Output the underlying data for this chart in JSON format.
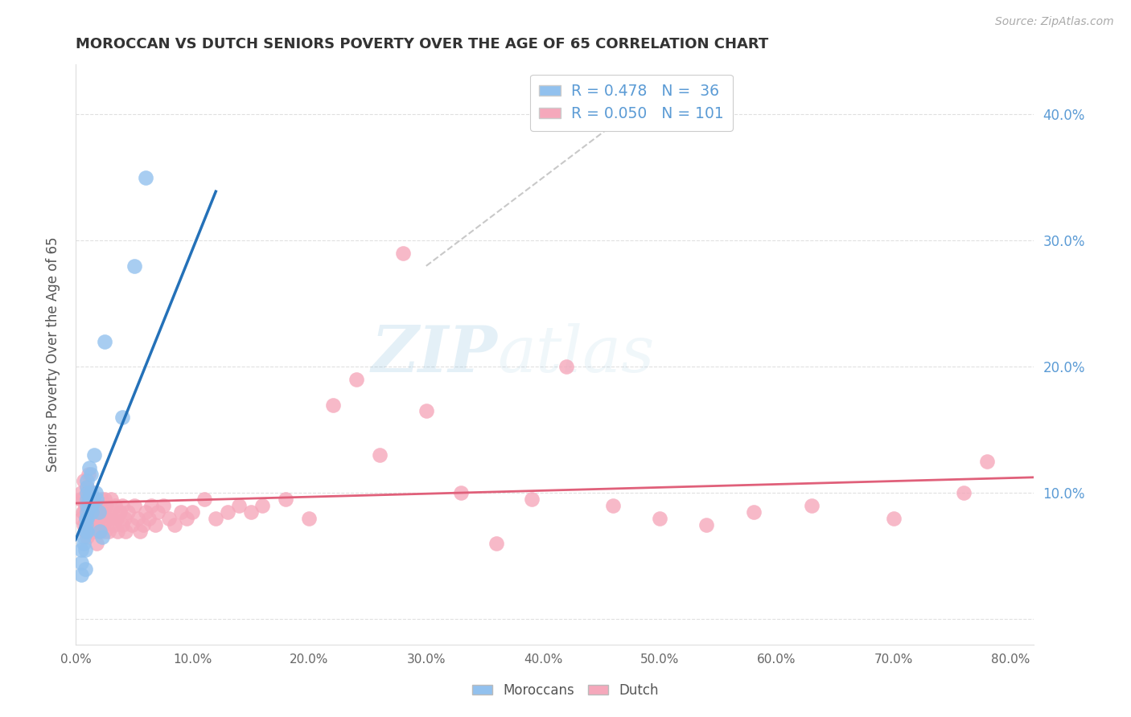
{
  "title": "MOROCCAN VS DUTCH SENIORS POVERTY OVER THE AGE OF 65 CORRELATION CHART",
  "source": "Source: ZipAtlas.com",
  "ylabel": "Seniors Poverty Over the Age of 65",
  "xlim": [
    0.0,
    0.82
  ],
  "ylim": [
    -0.02,
    0.44
  ],
  "xticks": [
    0.0,
    0.1,
    0.2,
    0.3,
    0.4,
    0.5,
    0.6,
    0.7,
    0.8
  ],
  "yticks": [
    0.0,
    0.1,
    0.2,
    0.3,
    0.4
  ],
  "ytick_labels_right": [
    "10.0%",
    "20.0%",
    "30.0%",
    "40.0%"
  ],
  "ytick_right_vals": [
    0.1,
    0.2,
    0.3,
    0.4
  ],
  "xtick_labels": [
    "0.0%",
    "10.0%",
    "20.0%",
    "30.0%",
    "40.0%",
    "50.0%",
    "60.0%",
    "70.0%",
    "80.0%"
  ],
  "moroccan_color": "#92C1EE",
  "dutch_color": "#F5A8BB",
  "moroccan_R": 0.478,
  "moroccan_N": 36,
  "dutch_R": 0.05,
  "dutch_N": 101,
  "moroccan_line_color": "#2471B8",
  "dutch_line_color": "#E0607A",
  "watermark_zip": "ZIP",
  "watermark_atlas": "atlas",
  "background_color": "#FFFFFF",
  "grid_color": "#DDDDDD",
  "moroccan_x": [
    0.005,
    0.005,
    0.005,
    0.007,
    0.007,
    0.008,
    0.008,
    0.009,
    0.009,
    0.009,
    0.01,
    0.01,
    0.01,
    0.01,
    0.01,
    0.01,
    0.01,
    0.01,
    0.012,
    0.012,
    0.012,
    0.013,
    0.013,
    0.014,
    0.014,
    0.015,
    0.016,
    0.017,
    0.018,
    0.02,
    0.021,
    0.023,
    0.025,
    0.04,
    0.05,
    0.06
  ],
  "moroccan_y": [
    0.035,
    0.045,
    0.055,
    0.06,
    0.065,
    0.04,
    0.055,
    0.07,
    0.075,
    0.08,
    0.07,
    0.08,
    0.085,
    0.09,
    0.095,
    0.1,
    0.105,
    0.11,
    0.09,
    0.095,
    0.12,
    0.1,
    0.115,
    0.085,
    0.09,
    0.095,
    0.13,
    0.1,
    0.095,
    0.085,
    0.07,
    0.065,
    0.22,
    0.16,
    0.28,
    0.35
  ],
  "dutch_x": [
    0.004,
    0.005,
    0.005,
    0.006,
    0.006,
    0.007,
    0.007,
    0.007,
    0.007,
    0.008,
    0.008,
    0.009,
    0.009,
    0.01,
    0.01,
    0.01,
    0.01,
    0.01,
    0.01,
    0.01,
    0.011,
    0.011,
    0.012,
    0.012,
    0.013,
    0.013,
    0.014,
    0.014,
    0.015,
    0.015,
    0.016,
    0.016,
    0.017,
    0.018,
    0.018,
    0.019,
    0.02,
    0.02,
    0.021,
    0.022,
    0.023,
    0.024,
    0.025,
    0.025,
    0.026,
    0.027,
    0.028,
    0.03,
    0.03,
    0.031,
    0.033,
    0.034,
    0.035,
    0.036,
    0.038,
    0.04,
    0.04,
    0.042,
    0.043,
    0.045,
    0.048,
    0.05,
    0.053,
    0.055,
    0.058,
    0.06,
    0.063,
    0.065,
    0.068,
    0.07,
    0.075,
    0.08,
    0.085,
    0.09,
    0.095,
    0.1,
    0.11,
    0.12,
    0.13,
    0.14,
    0.15,
    0.16,
    0.18,
    0.2,
    0.22,
    0.24,
    0.26,
    0.28,
    0.3,
    0.33,
    0.36,
    0.39,
    0.42,
    0.46,
    0.5,
    0.54,
    0.58,
    0.63,
    0.7,
    0.76,
    0.78
  ],
  "dutch_y": [
    0.095,
    0.08,
    0.1,
    0.085,
    0.095,
    0.075,
    0.085,
    0.095,
    0.11,
    0.07,
    0.09,
    0.08,
    0.095,
    0.065,
    0.075,
    0.085,
    0.09,
    0.095,
    0.1,
    0.105,
    0.08,
    0.115,
    0.075,
    0.09,
    0.07,
    0.085,
    0.075,
    0.095,
    0.07,
    0.09,
    0.08,
    0.095,
    0.075,
    0.06,
    0.09,
    0.08,
    0.07,
    0.09,
    0.08,
    0.095,
    0.085,
    0.075,
    0.07,
    0.095,
    0.09,
    0.08,
    0.07,
    0.085,
    0.095,
    0.08,
    0.075,
    0.09,
    0.08,
    0.07,
    0.085,
    0.075,
    0.09,
    0.08,
    0.07,
    0.085,
    0.075,
    0.09,
    0.08,
    0.07,
    0.075,
    0.085,
    0.08,
    0.09,
    0.075,
    0.085,
    0.09,
    0.08,
    0.075,
    0.085,
    0.08,
    0.085,
    0.095,
    0.08,
    0.085,
    0.09,
    0.085,
    0.09,
    0.095,
    0.08,
    0.17,
    0.19,
    0.13,
    0.29,
    0.165,
    0.1,
    0.06,
    0.095,
    0.2,
    0.09,
    0.08,
    0.075,
    0.085,
    0.09,
    0.08,
    0.1,
    0.125
  ],
  "moroccan_line_x": [
    0.0,
    0.12
  ],
  "moroccan_line_y_intercept": 0.063,
  "moroccan_line_slope": 2.3,
  "dutch_line_x": [
    0.0,
    0.82
  ],
  "dutch_line_y_intercept": 0.092,
  "dutch_line_slope": 0.025,
  "dash_line_x": [
    0.3,
    0.5
  ],
  "dash_line_y": [
    0.28,
    0.42
  ]
}
